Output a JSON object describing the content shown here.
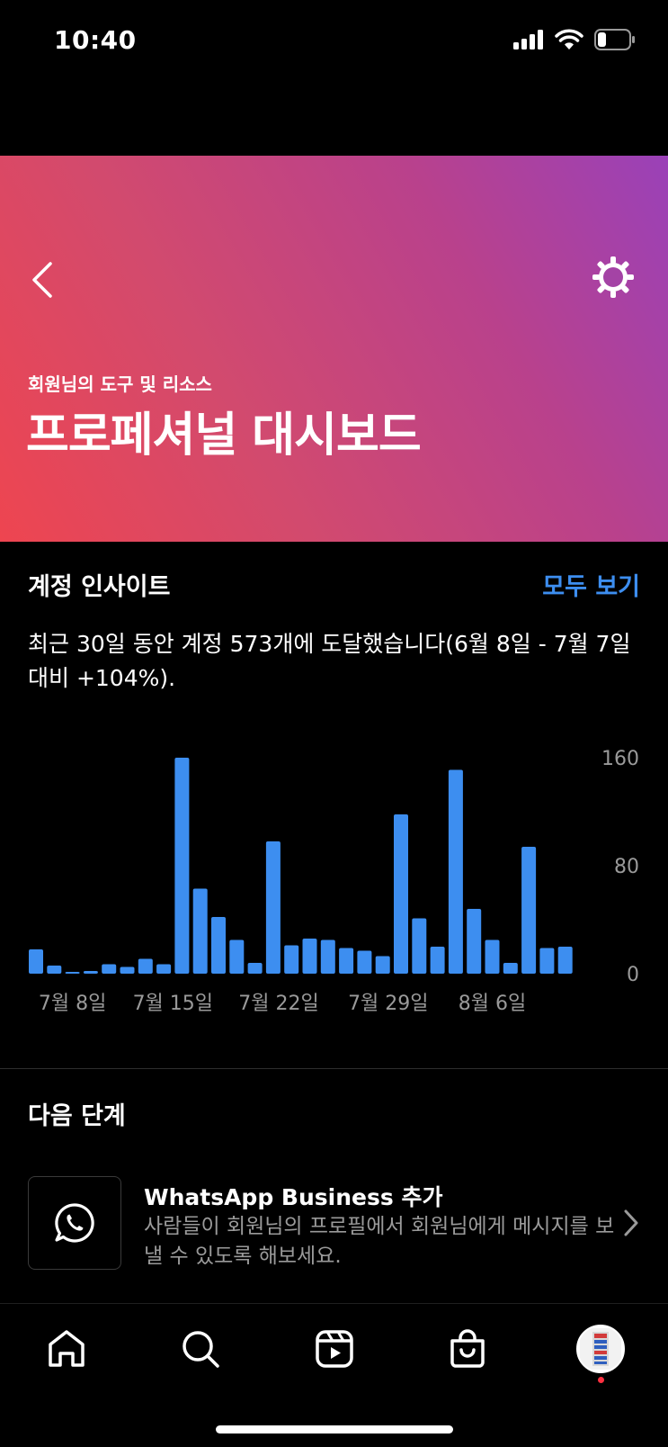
{
  "status_bar": {
    "time": "10:40"
  },
  "header": {
    "subtitle": "회원님의 도구 및 리소스",
    "title": "프로페셔널 대시보드"
  },
  "insights": {
    "title": "계정 인사이트",
    "see_all": "모두 보기",
    "description": "최근 30일 동안 계정 573개에 도달했습니다(6월 8일 - 7월 7일 대비 +104%)."
  },
  "chart_data": {
    "type": "bar",
    "y_ticks": [
      "160",
      "80",
      "0"
    ],
    "ylim": [
      0,
      160
    ],
    "x_tick_labels": [
      "7월 8일",
      "7월 15일",
      "7월 22일",
      "7월 29일",
      "8월 6일"
    ],
    "values": [
      18,
      6,
      1,
      2,
      7,
      5,
      11,
      7,
      160,
      63,
      42,
      25,
      8,
      98,
      21,
      26,
      25,
      19,
      17,
      13,
      118,
      41,
      20,
      151,
      48,
      25,
      8,
      94,
      19,
      20
    ],
    "bar_color": "#3d8ef0"
  },
  "next_steps": {
    "title": "다음 단계",
    "items": [
      {
        "title": "WhatsApp Business 추가",
        "description": "사람들이 회원님의 프로필에서 회원님에게 메시지를 보낼 수 있도록 해보세요.",
        "icon": "whatsapp-icon"
      }
    ]
  },
  "tabbar": {
    "items": [
      "home-icon",
      "search-icon",
      "reels-icon",
      "shop-icon",
      "profile-avatar"
    ]
  }
}
